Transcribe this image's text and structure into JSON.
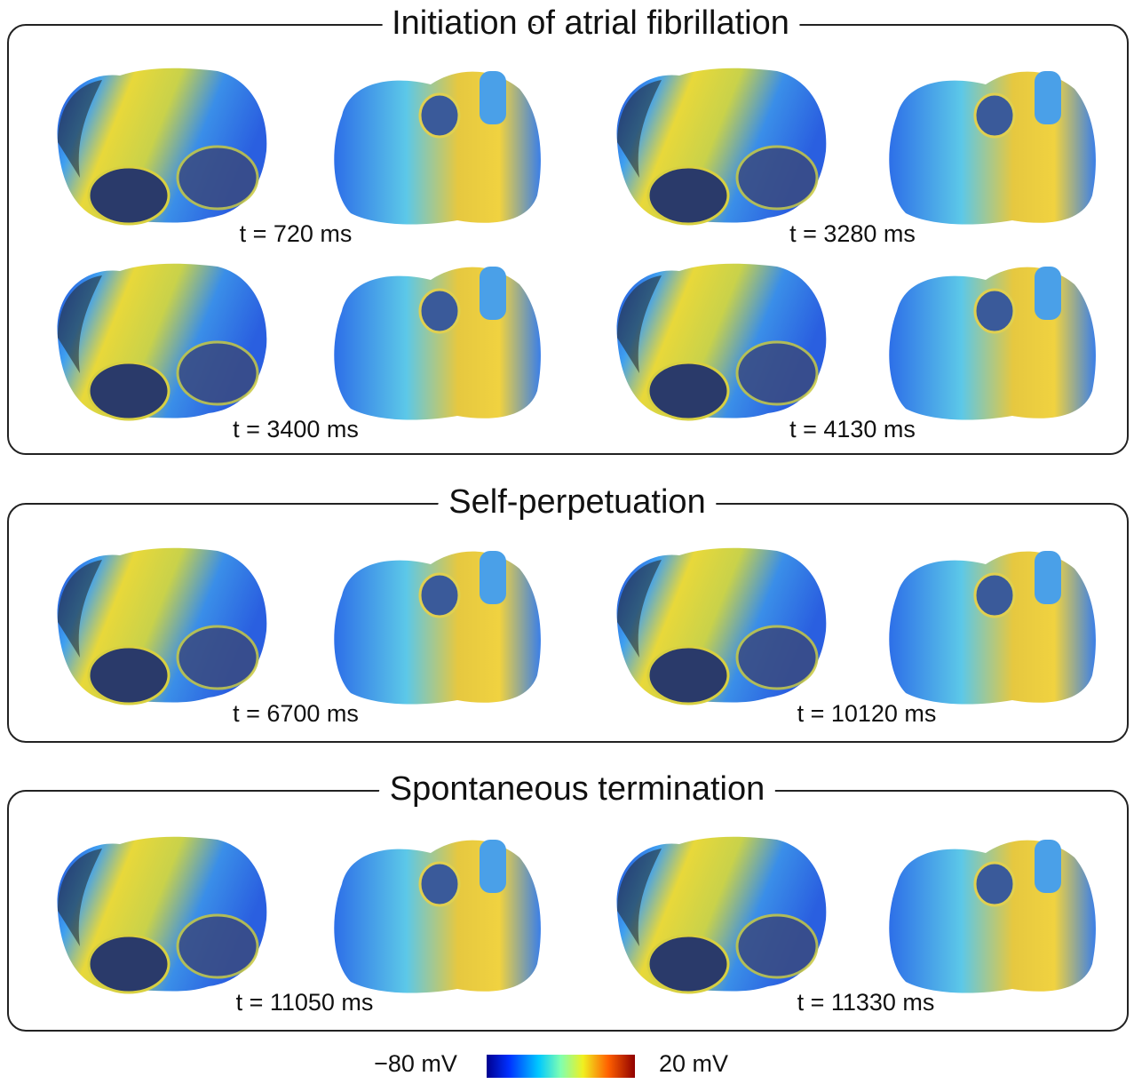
{
  "sections": [
    {
      "title": "Initiation of atrial fibrillation",
      "panels": [
        "t = 720 ms",
        "t = 3280 ms",
        "t = 3400 ms",
        "t = 4130 ms"
      ]
    },
    {
      "title": "Self-perpetuation",
      "panels": [
        "t = 6700 ms",
        "t = 10120 ms"
      ]
    },
    {
      "title": "Spontaneous termination",
      "panels": [
        "t = 11050 ms",
        "t = 11330 ms"
      ]
    }
  ],
  "colorbar": {
    "min_label": "−80 mV",
    "max_label": "20 mV"
  }
}
